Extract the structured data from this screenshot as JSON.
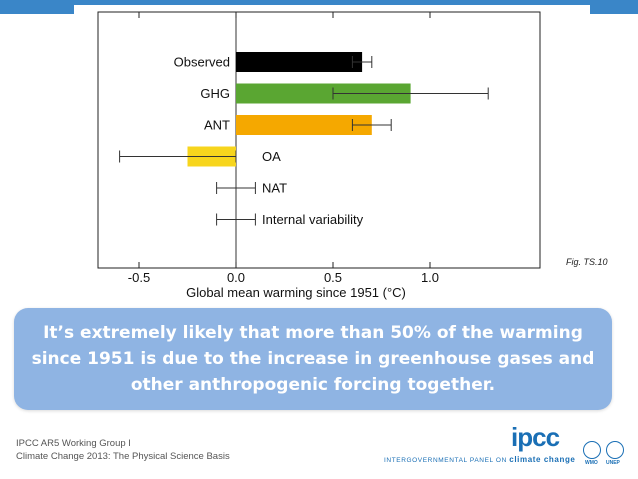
{
  "chart_data": {
    "type": "bar",
    "orientation": "horizontal",
    "categories": [
      "Observed",
      "GHG",
      "ANT",
      "OA",
      "NAT",
      "Internal variability"
    ],
    "values": [
      0.65,
      0.9,
      0.7,
      -0.25,
      0.0,
      0.0
    ],
    "error_low": [
      0.6,
      0.5,
      0.6,
      -0.6,
      -0.1,
      -0.1
    ],
    "error_high": [
      0.7,
      1.3,
      0.8,
      0.0,
      0.1,
      0.1
    ],
    "colors": [
      "#000000",
      "#5aa632",
      "#f5a800",
      "#f7d51d",
      "#000000",
      "#000000"
    ],
    "xlim": [
      -0.6,
      1.4
    ],
    "xticks": [
      -0.5,
      0.0,
      0.5,
      1.0
    ],
    "xtick_labels": [
      "-0.5",
      "0.0",
      "0.5",
      "1.0"
    ],
    "xlabel": "Global mean warming since 1951 (°C)",
    "grid": false,
    "figure_label": "Fig. TS.10"
  },
  "callout": {
    "text": "It’s extremely likely that more than 50% of the warming since 1951 is due to the increase in greenhouse gases and other anthropogenic forcing together."
  },
  "footer": {
    "line1": "IPCC AR5 Working Group I",
    "line2": "Climate Change 2013: The Physical Science Basis",
    "logo": "ipcc",
    "tagline_prefix": "INTERGOVERNMENTAL PANEL ON",
    "tagline_bold": "climate change",
    "wmo": "WMO",
    "unep": "UNEP"
  },
  "colors": {
    "accent": "#3a86c8",
    "callout_bg": "#8fb4e3",
    "logo_blue": "#1a6fb5"
  }
}
